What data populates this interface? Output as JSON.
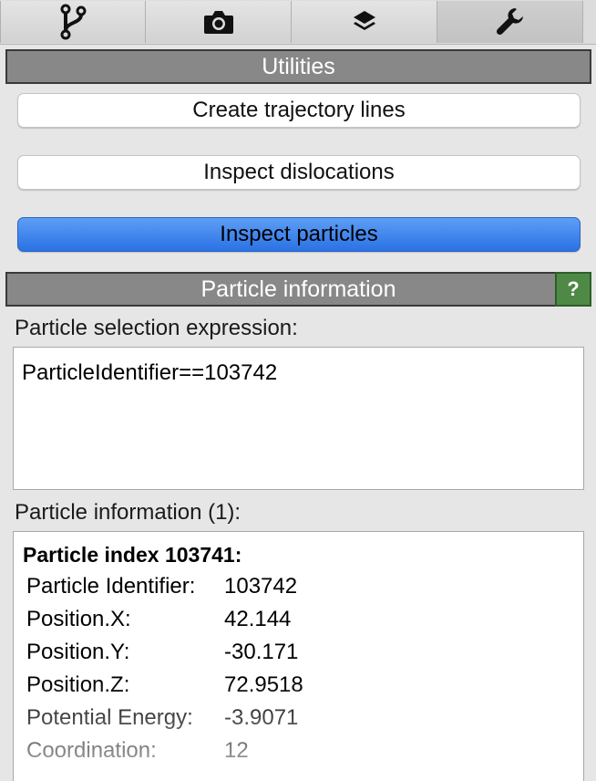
{
  "tabs": [
    {
      "icon": "pipeline-branch-icon"
    },
    {
      "icon": "camera-icon"
    },
    {
      "icon": "layers-icon"
    },
    {
      "icon": "wrench-icon",
      "active": true
    }
  ],
  "utilities": {
    "header": "Utilities",
    "buttons": [
      {
        "label": "Create trajectory lines"
      },
      {
        "label": "Inspect dislocations"
      },
      {
        "label": "Inspect particles",
        "active": true
      }
    ]
  },
  "particle_info": {
    "header": "Particle information",
    "help_label": "?",
    "expression_label": "Particle selection expression:",
    "expression_value": "ParticleIdentifier==103742",
    "info_label": "Particle information (1):",
    "title": "Particle index 103741:",
    "rows": [
      {
        "key": "Particle Identifier:",
        "value": "103742"
      },
      {
        "key": "Position.X:",
        "value": "42.144"
      },
      {
        "key": "Position.Y:",
        "value": "-30.171"
      },
      {
        "key": "Position.Z:",
        "value": "72.9518"
      },
      {
        "key": "Potential Energy:",
        "value": "-3.9071"
      },
      {
        "key": "Coordination:",
        "value": "12"
      }
    ]
  },
  "colors": {
    "active_button": "#3a80ee",
    "header_bg": "#888888",
    "help_bg": "#4e8a45"
  }
}
